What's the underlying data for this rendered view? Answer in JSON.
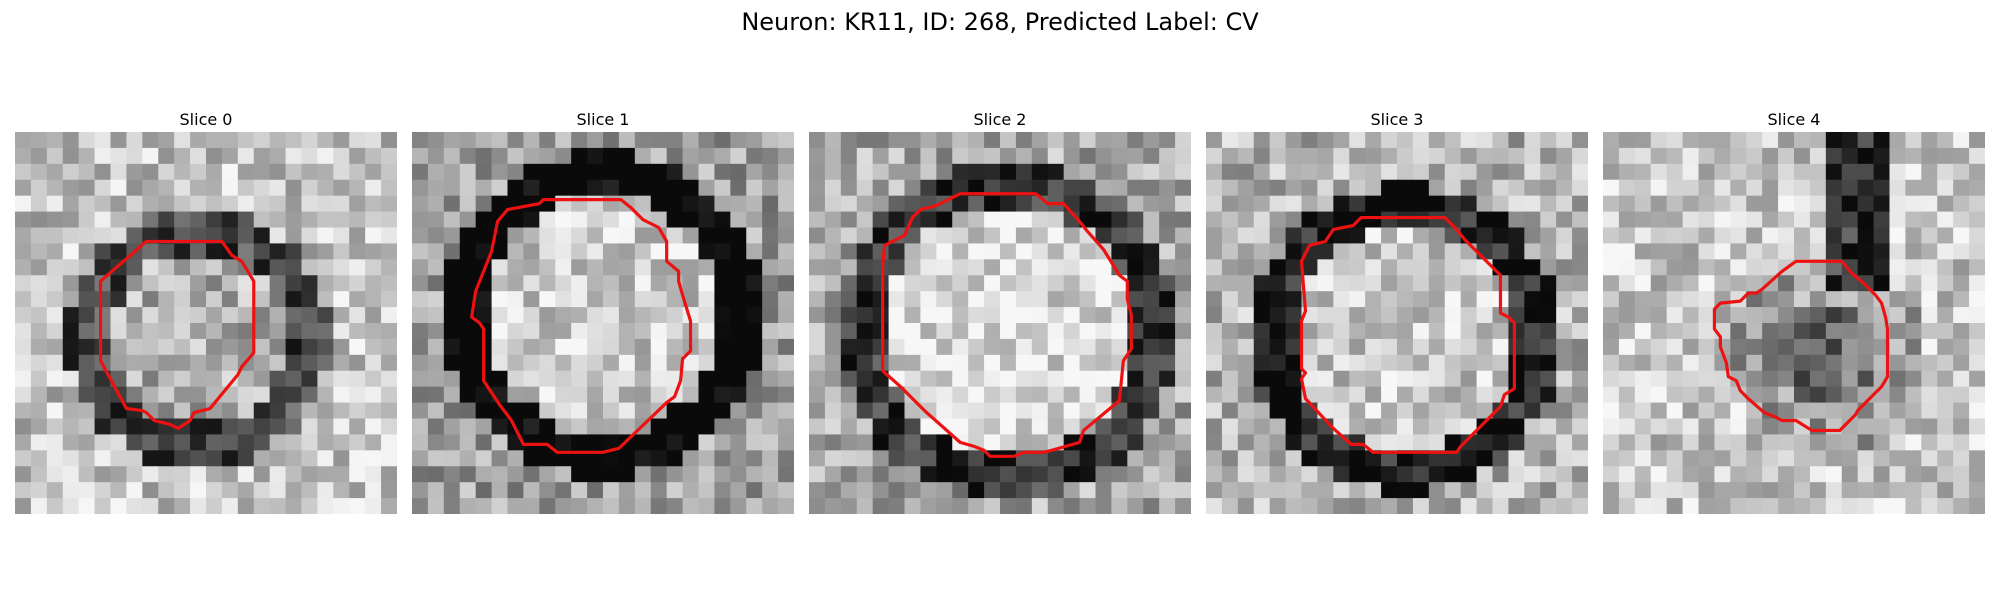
{
  "figure": {
    "title": "Neuron: KR11, ID: 268, Predicted Label: CV"
  },
  "panels": [
    {
      "title": "Slice 0"
    },
    {
      "title": "Slice 1"
    },
    {
      "title": "Slice 2"
    },
    {
      "title": "Slice 3"
    },
    {
      "title": "Slice 4"
    }
  ],
  "colors": {
    "contour": "#ee1111",
    "background": "#ffffff"
  }
}
